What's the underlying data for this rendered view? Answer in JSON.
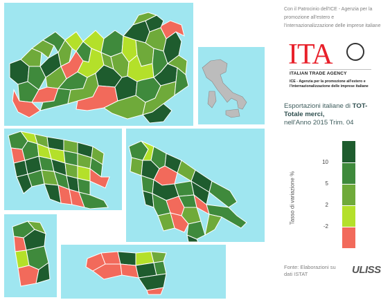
{
  "colors": {
    "sea": "#9fe6f0",
    "border": "#ffffff",
    "dark_green": "#1e5c2e",
    "mid_green": "#3f8a3c",
    "light_green": "#6faa3a",
    "lime": "#b4e02a",
    "red": "#f26a5b",
    "italy_gray": "#bcbcbc"
  },
  "sidebar": {
    "patrocinio": "Con il Patrocinio dell'ICE - Agenzia per la promozione all'estero e l'internazionalizzazione delle imprese italiane",
    "logo_text": "ITA",
    "logo_seal": "seal-icon",
    "agency_name": "ITALIAN TRADE AGENCY",
    "agency_sub": "ICE - Agenzia per la promozione all'estero e l'internazionalizzazione delle imprese italiane",
    "title_prefix": "Esportazioni italiane di ",
    "title_bold": "TOT- Totale merci,",
    "title_suffix": "nell'Anno 2015 Trim. 04",
    "legend_axis_label": "Tasso di variazione %",
    "legend": {
      "thresholds": [
        "10",
        "5",
        "2",
        "-2"
      ],
      "classes": [
        {
          "range": "> 10",
          "color": "#1e5c2e"
        },
        {
          "range": "5 – 10",
          "color": "#3f8a3c"
        },
        {
          "range": "2 – 5",
          "color": "#6faa3a"
        },
        {
          "range": "-2 – 2",
          "color": "#b4e02a"
        },
        {
          "range": "< -2",
          "color": "#f26a5b"
        }
      ]
    },
    "source": "Fonte: Elaborazioni su dati ISTAT",
    "brand": "ULISSE"
  }
}
